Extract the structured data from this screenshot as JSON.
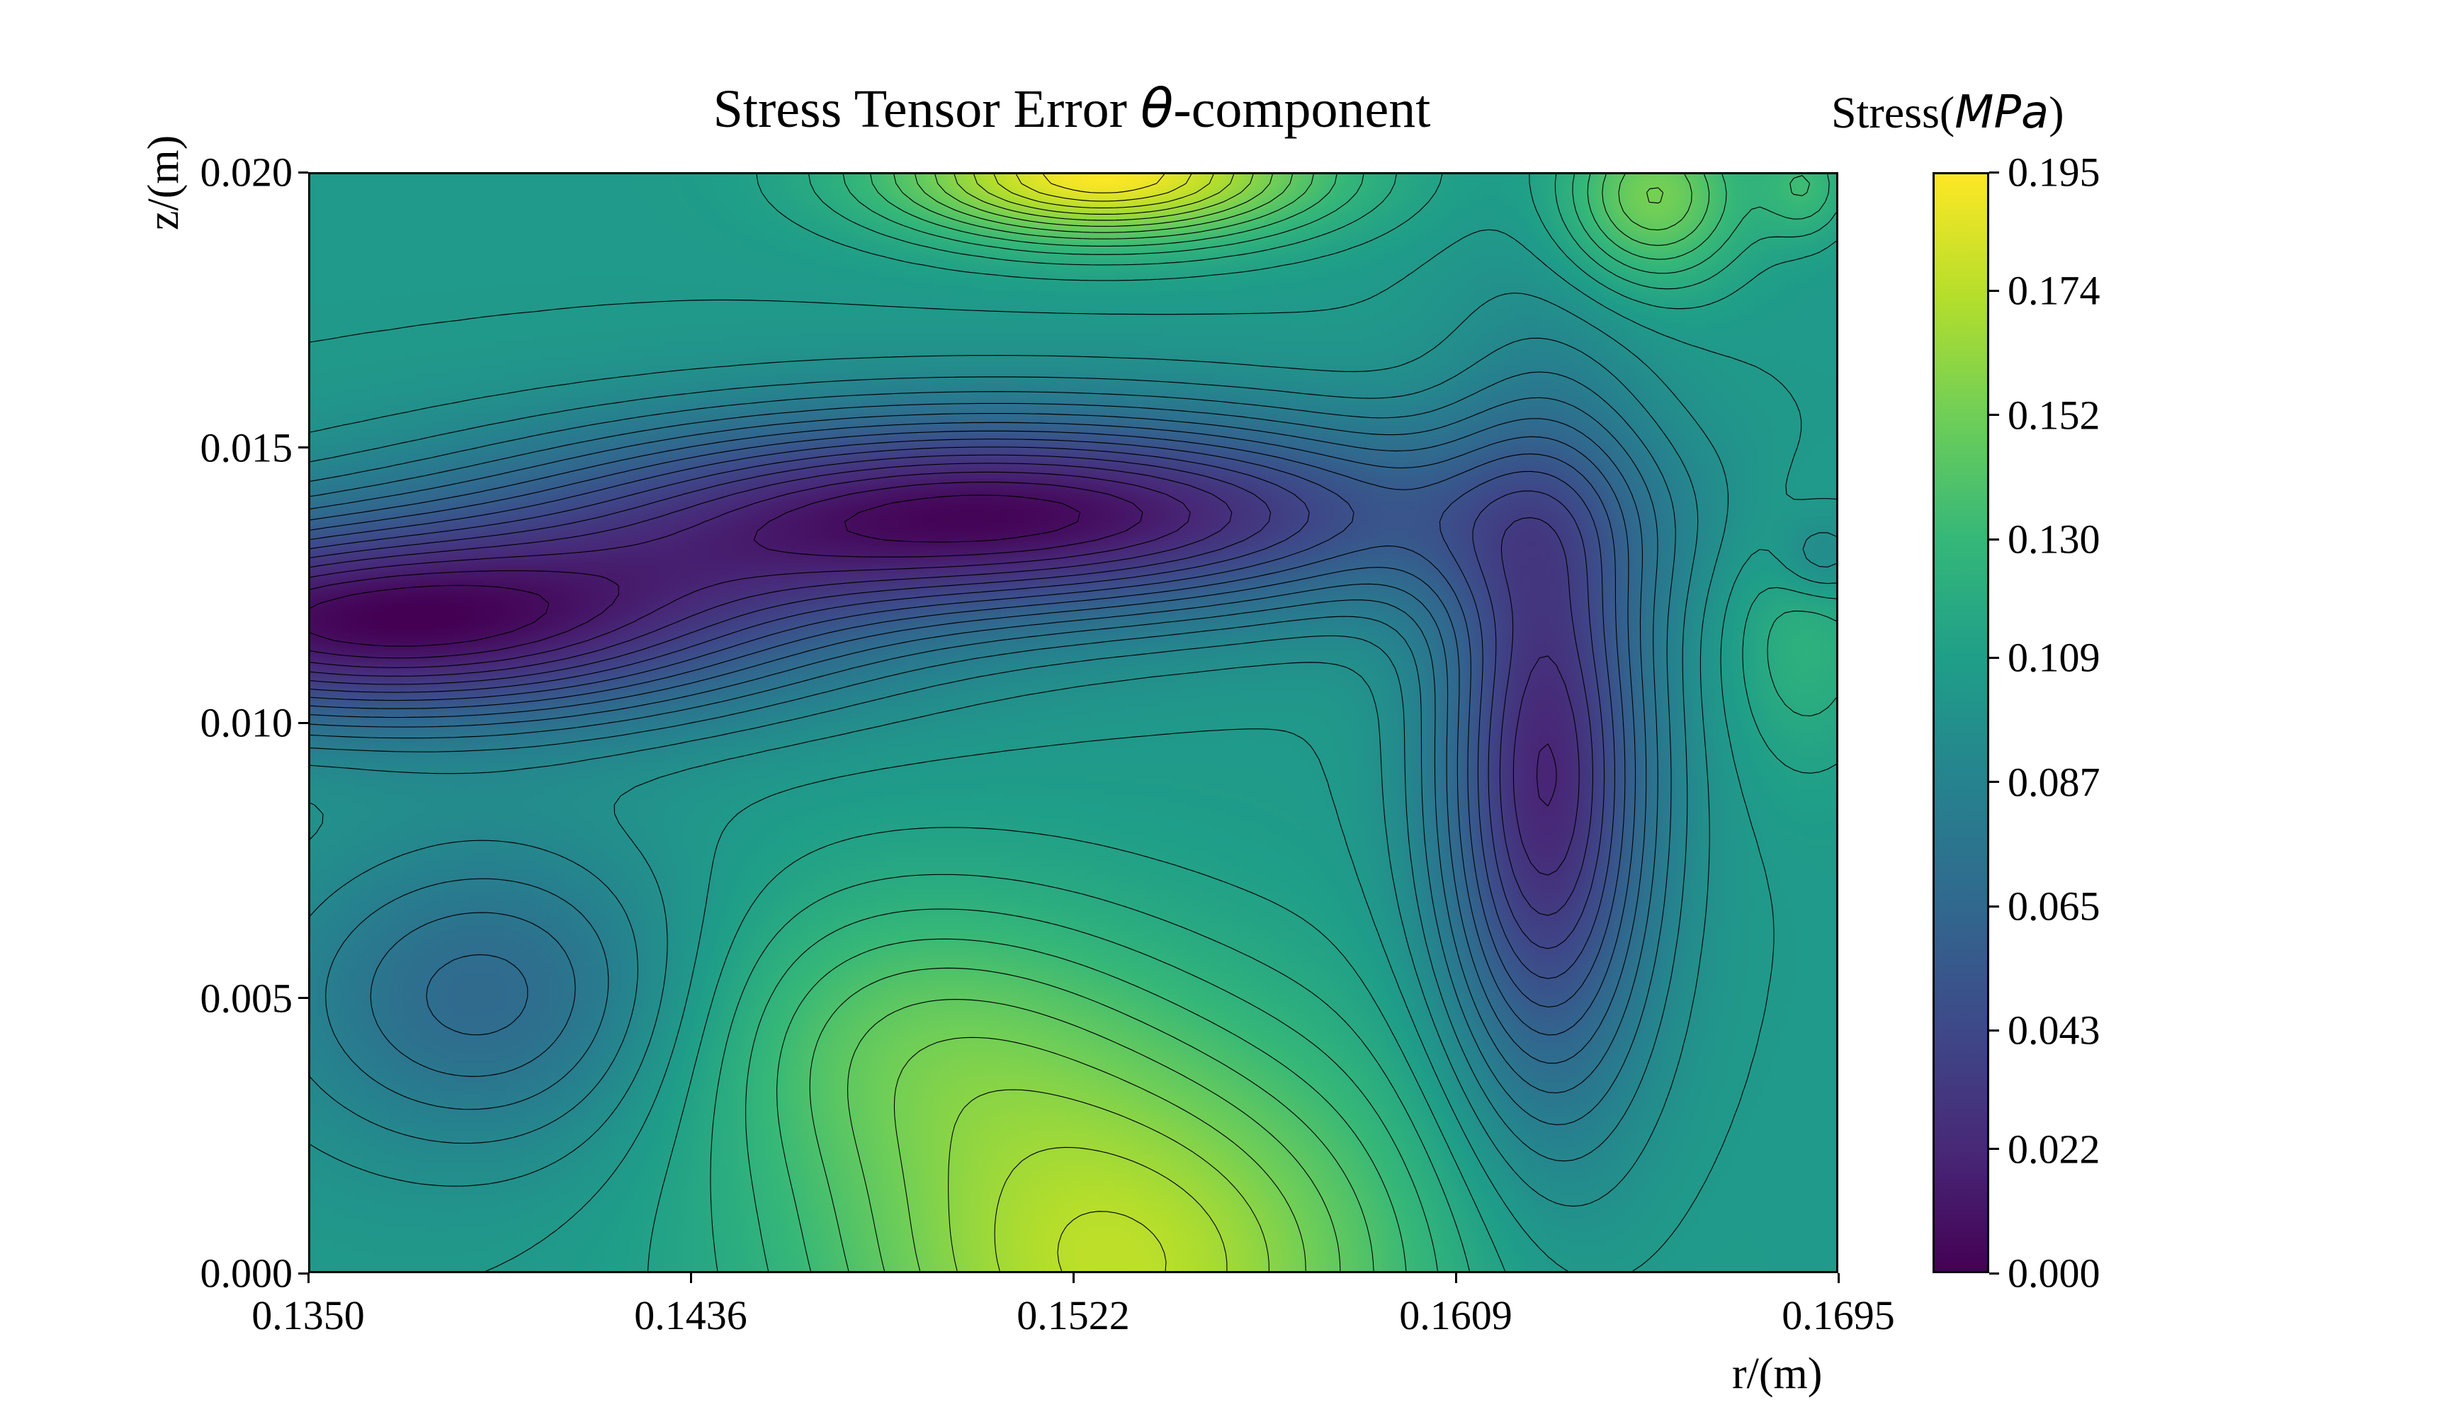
{
  "chart_data": {
    "type": "heatmap",
    "title": "Stress Tensor Error",
    "title_symbol": "θ",
    "title_suffix": "-component",
    "xlabel": "r/(m)",
    "ylabel": "z/(m)",
    "colorbar_label": "Stress(",
    "colorbar_unit": "MPa",
    "colorbar_label_end": ")",
    "colormap": "viridis",
    "contour_lines": true,
    "grid": false,
    "xlim": [
      0.135,
      0.1695
    ],
    "ylim": [
      0.0,
      0.02
    ],
    "clim": [
      0.0,
      0.195
    ],
    "x_ticks": [
      "0.1350",
      "0.1436",
      "0.1522",
      "0.1609",
      "0.1695"
    ],
    "y_ticks": [
      "0.000",
      "0.005",
      "0.010",
      "0.015",
      "0.020"
    ],
    "colorbar_ticks": [
      "0.000",
      "0.022",
      "0.043",
      "0.065",
      "0.087",
      "0.109",
      "0.130",
      "0.152",
      "0.174",
      "0.195"
    ],
    "colorbar_tick_values": [
      0.0,
      0.022,
      0.043,
      0.065,
      0.087,
      0.109,
      0.13,
      0.152,
      0.174,
      0.195
    ],
    "features": [
      {
        "kind": "max",
        "r": 0.1535,
        "z": 0.02,
        "value": 0.195
      },
      {
        "kind": "max",
        "r": 0.1535,
        "z": 0.0,
        "value": 0.165
      },
      {
        "kind": "max",
        "r": 0.164,
        "z": 0.0195,
        "value": 0.16
      },
      {
        "kind": "min",
        "r": 0.135,
        "z": 0.012,
        "value": 0.005
      },
      {
        "kind": "min",
        "r": 0.15,
        "z": 0.014,
        "value": 0.005
      },
      {
        "kind": "min",
        "r": 0.164,
        "z": 0.006,
        "value": 0.0
      },
      {
        "kind": "plateau",
        "r": 0.152,
        "z": 0.005,
        "value": 0.135
      },
      {
        "kind": "plateau",
        "r": 0.169,
        "z": 0.01,
        "value": 0.12
      }
    ]
  },
  "colors": {
    "viridis": [
      "#440154",
      "#482878",
      "#3e4989",
      "#31688e",
      "#26828e",
      "#1f9e89",
      "#35b779",
      "#6ece58",
      "#b5de2b",
      "#fde725"
    ],
    "contour": "#000000"
  }
}
